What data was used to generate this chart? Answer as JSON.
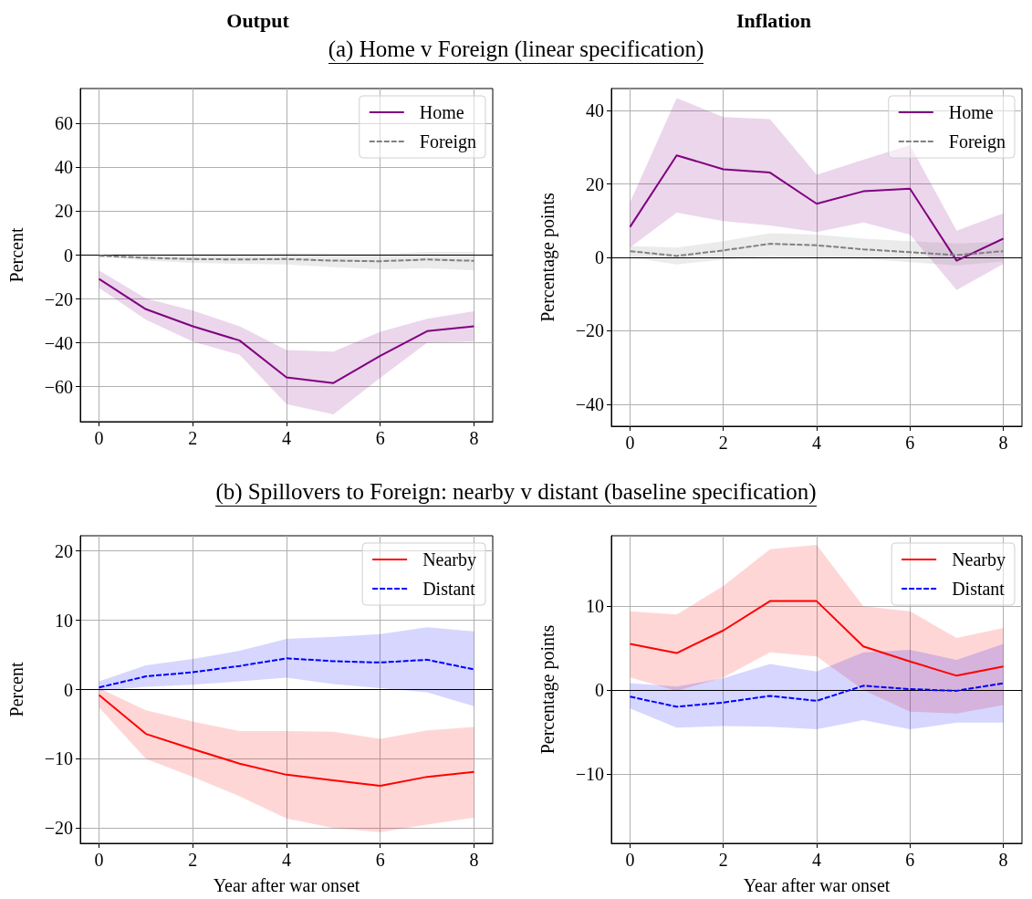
{
  "chart_data": [
    {
      "type": "line",
      "title": "Output",
      "subtitle": "(a) Home v Foreign (linear specification)",
      "ylabel": "Percent",
      "x": [
        0,
        1,
        2,
        3,
        4,
        5,
        6,
        7,
        8
      ],
      "xlim": [
        -0.4,
        8.4
      ],
      "xticks": [
        0,
        2,
        4,
        6,
        8
      ],
      "ylim": [
        -76,
        76
      ],
      "yticks": [
        {
          "value": -60,
          "label": "−60"
        },
        {
          "value": -40,
          "label": "−40"
        },
        {
          "value": -20,
          "label": "−20"
        },
        0,
        20,
        40,
        60
      ],
      "grid": true,
      "legend": "top right",
      "marker": "none",
      "ref_lines": [
        {
          "axis": "y",
          "value": 0,
          "color": "#000000"
        }
      ],
      "series": [
        {
          "name": "Home",
          "color": "#800080",
          "line_style": "solid",
          "values": [
            -10.9,
            -24.7,
            -32.5,
            -39,
            -55.8,
            -58.4,
            -46,
            -34.7,
            -32.5
          ],
          "lower": [
            -15,
            -29.5,
            -39.5,
            -45.5,
            -68,
            -72.7,
            -56,
            -40,
            -39.5
          ],
          "upper": [
            -7,
            -19.8,
            -25.3,
            -32.5,
            -43.3,
            -44,
            -35,
            -29,
            -25.6
          ]
        },
        {
          "name": "Foreign",
          "color": "#808080",
          "line_style": "dashed",
          "values": [
            -0.3,
            -1.2,
            -1.8,
            -2,
            -1.8,
            -2.5,
            -2.8,
            -2,
            -2.6
          ],
          "lower": [
            -0.5,
            -2.5,
            -3.5,
            -4,
            -4.3,
            -5.5,
            -6.5,
            -6,
            -7
          ],
          "upper": [
            0,
            0.3,
            0.5,
            0.5,
            1,
            0.8,
            0.5,
            1.5,
            1.5
          ]
        }
      ]
    },
    {
      "type": "line",
      "title": "Inflation",
      "ylabel": "Percentage points",
      "x": [
        0,
        1,
        2,
        3,
        4,
        5,
        6,
        7,
        8
      ],
      "xlim": [
        -0.4,
        8.4
      ],
      "xticks": [
        0,
        2,
        4,
        6,
        8
      ],
      "ylim": [
        -46,
        46
      ],
      "yticks": [
        {
          "value": -40,
          "label": "−40"
        },
        {
          "value": -20,
          "label": "−20"
        },
        0,
        20,
        40
      ],
      "grid": true,
      "legend": "top right",
      "marker": "none",
      "ref_lines": [
        {
          "axis": "y",
          "value": 0,
          "color": "#000000"
        }
      ],
      "series": [
        {
          "name": "Home",
          "color": "#800080",
          "line_style": "solid",
          "values": [
            8.3,
            27.8,
            24,
            23.1,
            14.6,
            18,
            18.7,
            -0.9,
            5.1
          ],
          "lower": [
            2.7,
            12.2,
            9.9,
            8.7,
            6.9,
            9.5,
            6.2,
            -8.9,
            -1.8
          ],
          "upper": [
            15,
            43.4,
            38.2,
            37.7,
            22.5,
            26.6,
            30.6,
            7.3,
            12
          ]
        },
        {
          "name": "Foreign",
          "color": "#808080",
          "line_style": "dashed",
          "values": [
            1.7,
            0.4,
            1.9,
            3.7,
            3.3,
            2.2,
            1.4,
            0.6,
            1.7
          ],
          "lower": [
            0,
            -1.9,
            -0.6,
            0.4,
            0,
            -0.4,
            -1.3,
            -2.2,
            -1.1
          ],
          "upper": [
            3.1,
            2.7,
            4.4,
            6.6,
            6.2,
            5.1,
            4.4,
            3.8,
            4.3
          ]
        }
      ]
    },
    {
      "type": "line",
      "subtitle": "(b) Spillovers to Foreign: nearby v distant (baseline specification)",
      "xlabel": "Year after war onset",
      "ylabel": "Percent",
      "x": [
        0,
        1,
        2,
        3,
        4,
        5,
        6,
        7,
        8
      ],
      "xlim": [
        -0.4,
        8.4
      ],
      "xticks": [
        0,
        2,
        4,
        6,
        8
      ],
      "ylim": [
        -22.2,
        22.2
      ],
      "yticks": [
        {
          "value": -20,
          "label": "−20"
        },
        {
          "value": -10,
          "label": "−10"
        },
        0,
        10,
        20
      ],
      "grid": true,
      "legend": "top right",
      "marker": "none",
      "ref_lines": [
        {
          "axis": "y",
          "value": 0,
          "color": "#000000"
        }
      ],
      "series": [
        {
          "name": "Nearby",
          "color": "#ff0000",
          "line_style": "solid",
          "values": [
            -0.8,
            -6.4,
            -8.6,
            -10.7,
            -12.3,
            -13.1,
            -13.9,
            -12.6,
            -11.9
          ],
          "lower": [
            -2.6,
            -10,
            -12.6,
            -15.4,
            -18.6,
            -20,
            -20.6,
            -19.5,
            -18.5
          ],
          "upper": [
            0.2,
            -3,
            -4.6,
            -6,
            -6,
            -6.1,
            -7.1,
            -5.9,
            -5.4
          ]
        },
        {
          "name": "Distant",
          "color": "#0000ff",
          "line_style": "dashed",
          "values": [
            0.3,
            1.9,
            2.5,
            3.4,
            4.5,
            4.1,
            3.9,
            4.3,
            2.9
          ],
          "lower": [
            -0.2,
            0.4,
            0.7,
            1.2,
            1.7,
            0.8,
            0.2,
            -0.4,
            -2.4
          ],
          "upper": [
            1.2,
            3.5,
            4.4,
            5.6,
            7.3,
            7.6,
            8,
            9,
            8.4
          ]
        }
      ]
    },
    {
      "type": "line",
      "xlabel": "Year after war onset",
      "ylabel": "Percentage points",
      "x": [
        0,
        1,
        2,
        3,
        4,
        5,
        6,
        7,
        8
      ],
      "xlim": [
        -0.4,
        8.4
      ],
      "xticks": [
        0,
        2,
        4,
        6,
        8
      ],
      "ylim": [
        -18.3,
        18.4
      ],
      "yticks": [
        {
          "value": -10,
          "label": "−10"
        },
        0,
        10
      ],
      "grid": true,
      "legend": "top right",
      "marker": "none",
      "ref_lines": [
        {
          "axis": "y",
          "value": 0,
          "color": "#000000"
        }
      ],
      "series": [
        {
          "name": "Nearby",
          "color": "#ff0000",
          "line_style": "solid",
          "values": [
            5.5,
            4.4,
            7.1,
            10.6,
            10.6,
            5.2,
            3.4,
            1.7,
            2.8
          ],
          "lower": [
            1.5,
            -0.1,
            1.5,
            4.5,
            4,
            0,
            -2.6,
            -2.8,
            -1.8
          ],
          "upper": [
            9.4,
            9,
            12.4,
            16.8,
            17.3,
            10,
            9.4,
            6.2,
            7.4
          ]
        },
        {
          "name": "Distant",
          "color": "#0000ff",
          "line_style": "dashed",
          "values": [
            -0.8,
            -2,
            -1.5,
            -0.7,
            -1.3,
            0.5,
            0.1,
            -0.1,
            0.8
          ],
          "lower": [
            -2.2,
            -4.5,
            -4.3,
            -4.4,
            -4.7,
            -3.6,
            -4.7,
            -3.9,
            -3.9
          ],
          "upper": [
            0.8,
            0.4,
            1.4,
            3.1,
            2.2,
            4.5,
            4.8,
            3.6,
            5.5
          ]
        }
      ]
    }
  ]
}
